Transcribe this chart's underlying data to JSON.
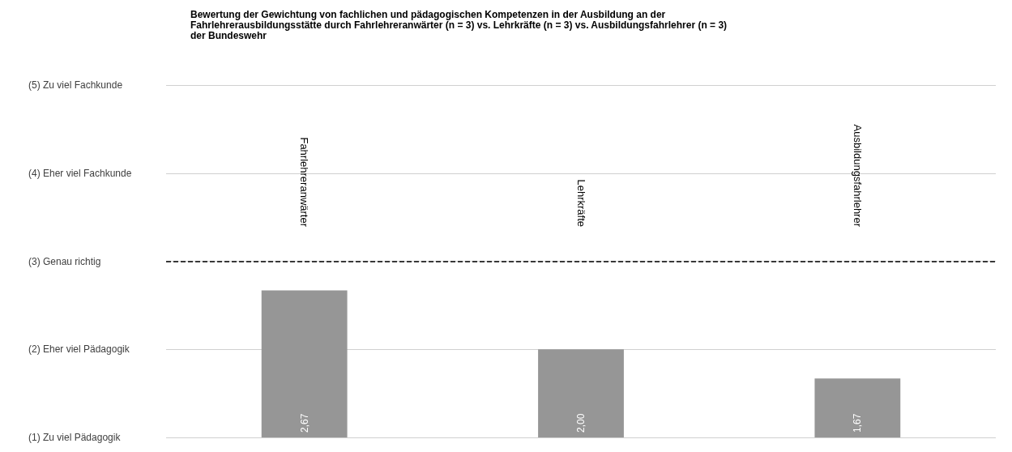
{
  "chart_data": {
    "type": "bar",
    "title": "Bewertung der Gewichtung von fachlichen und pädagogischen Kompetenzen in der Ausbildung an der\nFahrlehrerausbildungsstätte durch Fahrlehreranwärter (n = 3) vs. Lehrkräfte (n = 3) vs. Ausbildungsfahrlehrer (n = 3)\nder Bundeswehr",
    "categories": [
      "Fahrlehreranwärter",
      "Lehrkräfte",
      "Ausbildungsfahrlehrer"
    ],
    "values": [
      2.67,
      2.0,
      1.67
    ],
    "value_labels": [
      "2,67",
      "2,00",
      "1,67"
    ],
    "color": "#969696",
    "ylim": [
      1,
      5
    ],
    "yticks": [
      {
        "value": 1,
        "label": "(1) Zu viel Pädagogik"
      },
      {
        "value": 2,
        "label": "(2) Eher viel Pädagogik"
      },
      {
        "value": 3,
        "label": "(3) Genau richtig"
      },
      {
        "value": 4,
        "label": "(4) Eher viel Fachkunde"
      },
      {
        "value": 5,
        "label": "(5) Zu viel Fachkunde"
      }
    ],
    "ref_lines": [
      {
        "axis": "y",
        "value": 3,
        "color": "#000000",
        "line_style": "dashed"
      }
    ],
    "grid": "y"
  }
}
